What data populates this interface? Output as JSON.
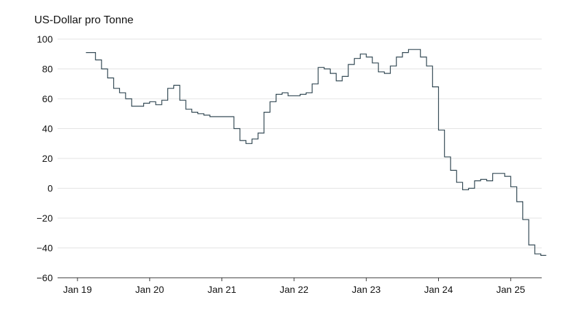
{
  "chart_data": {
    "type": "line",
    "title": "",
    "ylabel": "US-Dollar pro Tonne",
    "xlabel": "",
    "ylim": [
      -60,
      100
    ],
    "y_ticks": [
      100,
      80,
      60,
      40,
      20,
      0,
      -20,
      -40,
      -60
    ],
    "x_range": [
      "2019-01",
      "2025-07"
    ],
    "x_ticks": [
      {
        "label": "Jan 19",
        "date": "2019-01"
      },
      {
        "label": "Jan 20",
        "date": "2020-01"
      },
      {
        "label": "Jan 21",
        "date": "2021-01"
      },
      {
        "label": "Jan 22",
        "date": "2022-01"
      },
      {
        "label": "Jan 23",
        "date": "2023-01"
      },
      {
        "label": "Jan 24",
        "date": "2024-01"
      },
      {
        "label": "Jan 25",
        "date": "2025-01"
      }
    ],
    "grid": true,
    "line_color": "#2f4550",
    "step": true,
    "series": [
      {
        "x": [
          "2019-03",
          "2019-04",
          "2019-05",
          "2019-06",
          "2019-07",
          "2019-08",
          "2019-09",
          "2019-10",
          "2019-11",
          "2019-12",
          "2020-01",
          "2020-02",
          "2020-03",
          "2020-04",
          "2020-05",
          "2020-06",
          "2020-07",
          "2020-08",
          "2020-09",
          "2020-10",
          "2020-11",
          "2020-12",
          "2021-01",
          "2021-02",
          "2021-03",
          "2021-04",
          "2021-05",
          "2021-06",
          "2021-07",
          "2021-08",
          "2021-09",
          "2021-10",
          "2021-11",
          "2021-12",
          "2022-01",
          "2022-02",
          "2022-03",
          "2022-04",
          "2022-05",
          "2022-06",
          "2022-07",
          "2022-08",
          "2022-09",
          "2022-10",
          "2022-11",
          "2022-12",
          "2023-01",
          "2023-02",
          "2023-03",
          "2023-04",
          "2023-05",
          "2023-06",
          "2023-07",
          "2023-08",
          "2023-09",
          "2023-10",
          "2023-11",
          "2023-12",
          "2024-01",
          "2024-02",
          "2024-03",
          "2024-04",
          "2024-05",
          "2024-06",
          "2024-07",
          "2024-08",
          "2024-09",
          "2024-10",
          "2024-11",
          "2024-12",
          "2025-01",
          "2025-02",
          "2025-03",
          "2025-04",
          "2025-05",
          "2025-06"
        ],
        "values": [
          91,
          86,
          80,
          74,
          67,
          64,
          60,
          55,
          55,
          57,
          58,
          56,
          59,
          67,
          69,
          59,
          53,
          51,
          50,
          49,
          48,
          48,
          48,
          48,
          40,
          32,
          30,
          33,
          37,
          51,
          58,
          63,
          64,
          62,
          62,
          63,
          64,
          70,
          81,
          80,
          77,
          72,
          75,
          83,
          87,
          90,
          88,
          84,
          78,
          77,
          82,
          88,
          91,
          93,
          93,
          88,
          82,
          68,
          39,
          21,
          12,
          4,
          -1,
          0,
          5,
          6,
          5,
          10,
          10,
          8,
          1,
          -9,
          -21,
          -38,
          -44,
          -45
        ]
      }
    ]
  }
}
